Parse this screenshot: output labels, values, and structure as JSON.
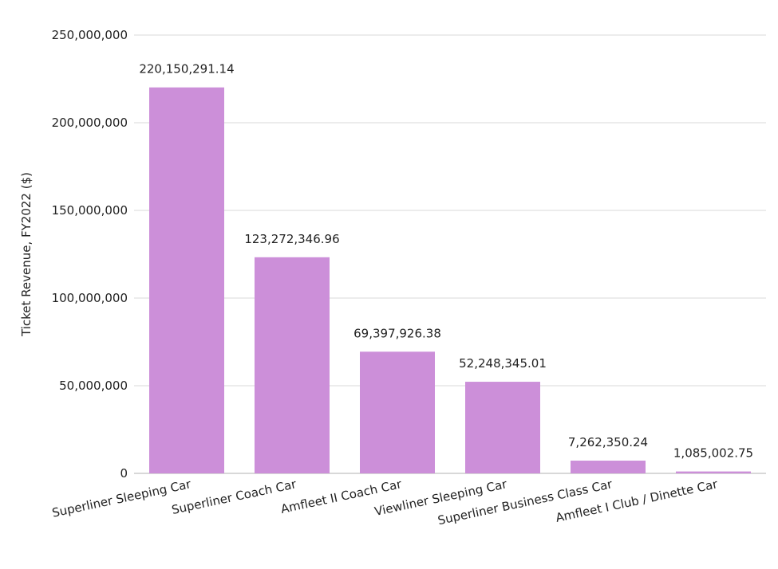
{
  "chart_data": {
    "type": "bar",
    "title": "",
    "xlabel": "",
    "ylabel": "Ticket Revenue, FY2022 ($)",
    "ylim": [
      0,
      250000000
    ],
    "yticks": [
      0,
      50000000,
      100000000,
      150000000,
      200000000,
      250000000
    ],
    "ytick_labels": [
      "0",
      "50,000,000",
      "100,000,000",
      "150,000,000",
      "200,000,000",
      "250,000,000"
    ],
    "grid": true,
    "bar_color": "#cc8fd9",
    "categories": [
      "Superliner Sleeping Car",
      "Superliner Coach Car",
      "Amfleet II Coach Car",
      "Viewliner Sleeping Car",
      "Superliner Business Class Car",
      "Amfleet I Club / Dinette Car"
    ],
    "values": [
      220150291.14,
      123272346.96,
      69397926.38,
      52248345.01,
      7262350.24,
      1085002.75
    ],
    "data_labels": [
      "220,150,291.14",
      "123,272,346.96",
      "69,397,926.38",
      "52,248,345.01",
      "7,262,350.24",
      "1,085,002.75"
    ]
  }
}
